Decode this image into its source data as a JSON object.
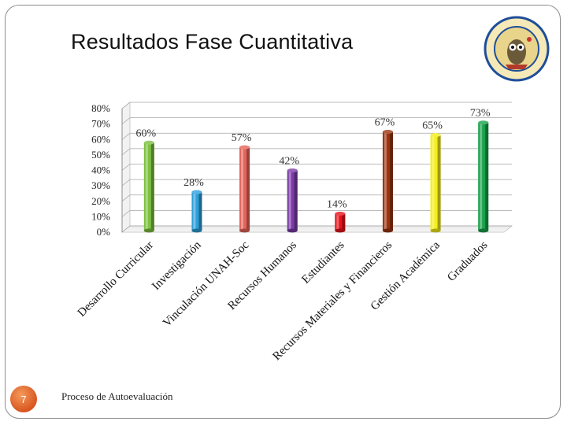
{
  "slide": {
    "title": "Resultados Fase Cuantitativa",
    "number": "7",
    "footer": "Proceso de Autoevaluación",
    "seal_icon": "university-owl-seal-icon",
    "accent_color": "#e06a2c"
  },
  "chart_data": {
    "type": "bar",
    "title": "",
    "xlabel": "",
    "ylabel": "",
    "ylim": [
      0,
      80
    ],
    "yticks": [
      "0%",
      "10%",
      "20%",
      "30%",
      "40%",
      "50%",
      "60%",
      "70%",
      "80%"
    ],
    "grid": true,
    "legend": "none",
    "categories": [
      "Desarrollo Curricular",
      "Investigación",
      "Vinculación UNAH-Soc",
      "Recursos Humanos",
      "Estudiantes",
      "Recursos Materiales y Financieros",
      "Gestión Académica",
      "Graduados"
    ],
    "values": [
      60,
      28,
      57,
      42,
      14,
      67,
      65,
      73
    ],
    "value_labels": [
      "60%",
      "28%",
      "57%",
      "42%",
      "14%",
      "67%",
      "65%",
      "73%"
    ],
    "colors": [
      "#7dc142",
      "#2e9fd9",
      "#e4645a",
      "#7a3aa6",
      "#e8121a",
      "#9c3411",
      "#f4ee1a",
      "#1aa24a"
    ]
  }
}
